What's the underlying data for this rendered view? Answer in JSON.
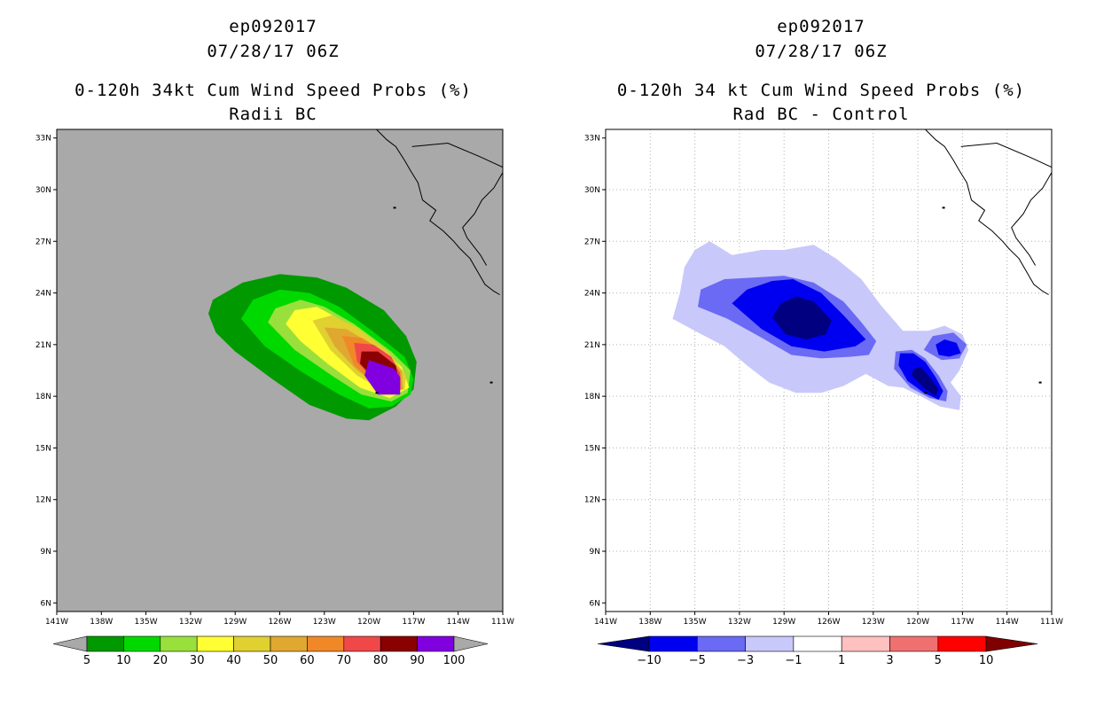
{
  "chart_data": [
    {
      "type": "heatmap",
      "title_lines": [
        "ep092017",
        "07/28/17 06Z",
        "0-120h 34kt Cum Wind Speed Probs (%)",
        "Radii BC"
      ],
      "xlabel": "",
      "ylabel": "",
      "xlim": [
        -141,
        -111
      ],
      "ylim": [
        5.5,
        33.5
      ],
      "x_ticks": [
        "141W",
        "138W",
        "135W",
        "132W",
        "129W",
        "126W",
        "123W",
        "120W",
        "117W",
        "114W",
        "111W"
      ],
      "y_ticks": [
        "6N",
        "9N",
        "12N",
        "15N",
        "18N",
        "21N",
        "24N",
        "27N",
        "30N",
        "33N"
      ],
      "grid": false,
      "background_color": "#a9a9a9",
      "colorbar": {
        "labels": [
          "5",
          "10",
          "20",
          "30",
          "40",
          "50",
          "60",
          "70",
          "80",
          "90",
          "100"
        ],
        "colors": [
          "#009900",
          "#00d900",
          "#99e03c",
          "#ffff33",
          "#e0d030",
          "#e0a830",
          "#f08828",
          "#f04848",
          "#8b0000",
          "#8000e0"
        ]
      },
      "contours": [
        {
          "level": 5,
          "color": "#009900",
          "poly": [
            [
              -130.8,
              22.8
            ],
            [
              -130.5,
              23.6
            ],
            [
              -128.5,
              24.6
            ],
            [
              -126,
              25.1
            ],
            [
              -123.5,
              24.9
            ],
            [
              -121.5,
              24.3
            ],
            [
              -119,
              23
            ],
            [
              -117.5,
              21.5
            ],
            [
              -116.8,
              20
            ],
            [
              -117,
              18.4
            ],
            [
              -118.2,
              17.4
            ],
            [
              -120,
              16.6
            ],
            [
              -121.5,
              16.7
            ],
            [
              -124,
              17.5
            ],
            [
              -126.5,
              19
            ],
            [
              -129,
              20.6
            ],
            [
              -130.3,
              21.7
            ]
          ]
        },
        {
          "level": 10,
          "color": "#00d900",
          "poly": [
            [
              -128.6,
              22.5
            ],
            [
              -127.8,
              23.6
            ],
            [
              -126,
              24.2
            ],
            [
              -124,
              24
            ],
            [
              -122,
              23.2
            ],
            [
              -119.8,
              21.8
            ],
            [
              -117.6,
              20.3
            ],
            [
              -117,
              19
            ],
            [
              -117.2,
              18.1
            ],
            [
              -118.5,
              17.4
            ],
            [
              -120,
              17.3
            ],
            [
              -122,
              18.1
            ],
            [
              -124.5,
              19.4
            ],
            [
              -127,
              20.9
            ]
          ]
        },
        {
          "level": 20,
          "color": "#99e03c",
          "poly": [
            [
              -126.8,
              22.3
            ],
            [
              -126.3,
              23.1
            ],
            [
              -124.6,
              23.6
            ],
            [
              -123,
              23.2
            ],
            [
              -121,
              22.2
            ],
            [
              -118.5,
              20.6
            ],
            [
              -117.2,
              19.5
            ],
            [
              -117.4,
              18.2
            ],
            [
              -118.5,
              17.7
            ],
            [
              -120.5,
              18.1
            ],
            [
              -122.5,
              19.2
            ],
            [
              -125,
              20.7
            ]
          ]
        },
        {
          "level": 30,
          "color": "#ffff33",
          "poly": [
            [
              -125.6,
              22.2
            ],
            [
              -125,
              23
            ],
            [
              -123.5,
              23.2
            ],
            [
              -121.8,
              22.4
            ],
            [
              -119.5,
              21.1
            ],
            [
              -117.8,
              19.7
            ],
            [
              -117.3,
              18.5
            ],
            [
              -118.6,
              17.9
            ],
            [
              -120.6,
              18.5
            ],
            [
              -122.8,
              19.9
            ],
            [
              -124.6,
              21.2
            ]
          ]
        },
        {
          "level": 40,
          "color": "#e0d030",
          "poly": [
            [
              -123.8,
              22.4
            ],
            [
              -122.5,
              22.7
            ],
            [
              -120.8,
              22
            ],
            [
              -118.7,
              20.6
            ],
            [
              -117.5,
              19.2
            ],
            [
              -117.6,
              18.4
            ],
            [
              -118.8,
              18.2
            ],
            [
              -120.8,
              19.2
            ],
            [
              -122.6,
              20.7
            ]
          ]
        },
        {
          "level": 50,
          "color": "#e0a830",
          "poly": [
            [
              -123,
              22
            ],
            [
              -121.5,
              21.9
            ],
            [
              -119.6,
              20.9
            ],
            [
              -117.8,
              19.5
            ],
            [
              -117.7,
              18.4
            ],
            [
              -119,
              18.3
            ],
            [
              -120.9,
              19.6
            ],
            [
              -122.3,
              20.9
            ]
          ]
        },
        {
          "level": 60,
          "color": "#f08828",
          "poly": [
            [
              -121.8,
              21.5
            ],
            [
              -120.5,
              21.4
            ],
            [
              -119,
              20.6
            ],
            [
              -117.9,
              19.4
            ],
            [
              -117.8,
              18.4
            ],
            [
              -119.2,
              18.4
            ],
            [
              -121,
              19.8
            ]
          ]
        },
        {
          "level": 70,
          "color": "#f04848",
          "poly": [
            [
              -121,
              21.1
            ],
            [
              -119.7,
              21
            ],
            [
              -118.5,
              20.3
            ],
            [
              -117.9,
              19.3
            ],
            [
              -117.9,
              18.4
            ],
            [
              -119.3,
              18.6
            ],
            [
              -120.8,
              20
            ]
          ]
        },
        {
          "level": 80,
          "color": "#8b0000",
          "poly": [
            [
              -120.5,
              20.6
            ],
            [
              -119.4,
              20.6
            ],
            [
              -118.2,
              19.8
            ],
            [
              -118,
              18.9
            ],
            [
              -118.3,
              18.5
            ],
            [
              -119.4,
              18.8
            ],
            [
              -120.6,
              19.9
            ]
          ]
        },
        {
          "level": 90,
          "color": "#8000e0",
          "poly": [
            [
              -120,
              20.1
            ],
            [
              -118.3,
              19.6
            ],
            [
              -117.9,
              19.1
            ],
            [
              -117.9,
              18.1
            ],
            [
              -119.4,
              18.1
            ],
            [
              -120.3,
              19.2
            ]
          ]
        }
      ]
    },
    {
      "type": "heatmap",
      "title_lines": [
        "ep092017",
        "07/28/17 06Z",
        "0-120h 34 kt Cum Wind Speed Probs (%)",
        "Rad BC - Control"
      ],
      "xlabel": "",
      "ylabel": "",
      "xlim": [
        -141,
        -111
      ],
      "ylim": [
        5.5,
        33.5
      ],
      "x_ticks": [
        "141W",
        "138W",
        "135W",
        "132W",
        "129W",
        "126W",
        "123W",
        "120W",
        "117W",
        "114W",
        "111W"
      ],
      "y_ticks": [
        "6N",
        "9N",
        "12N",
        "15N",
        "18N",
        "21N",
        "24N",
        "27N",
        "30N",
        "33N"
      ],
      "grid": true,
      "background_color": "#ffffff",
      "colorbar": {
        "labels": [
          "-10",
          "-5",
          "-3",
          "-1",
          "1",
          "3",
          "5",
          "10"
        ],
        "colors": [
          "#000080",
          "#0000f0",
          "#6a6af5",
          "#c8c8fa",
          "#ffffff",
          "#ffc0c0",
          "#f07070",
          "#ff0000",
          "#800000"
        ]
      },
      "contours": [
        {
          "level": -1,
          "color": "#c8c8fa",
          "poly": [
            [
              -136.5,
              22.5
            ],
            [
              -136,
              24
            ],
            [
              -135.7,
              25.5
            ],
            [
              -135,
              26.5
            ],
            [
              -134,
              27
            ],
            [
              -132.5,
              26.2
            ],
            [
              -130.5,
              26.5
            ],
            [
              -129,
              26.5
            ],
            [
              -127,
              26.8
            ],
            [
              -125.5,
              26
            ],
            [
              -123.8,
              24.8
            ],
            [
              -122.5,
              23.3
            ],
            [
              -121,
              21.8
            ],
            [
              -119.3,
              21.8
            ],
            [
              -118.2,
              22.1
            ],
            [
              -117,
              21.6
            ],
            [
              -116.6,
              20.7
            ],
            [
              -117.2,
              19.5
            ],
            [
              -117.8,
              18.8
            ],
            [
              -117.1,
              18
            ],
            [
              -117.2,
              17.2
            ],
            [
              -118.5,
              17.4
            ],
            [
              -119.8,
              18
            ],
            [
              -121,
              18.5
            ],
            [
              -122,
              18.6
            ],
            [
              -123.5,
              19.3
            ],
            [
              -125,
              18.6
            ],
            [
              -126.5,
              18.2
            ],
            [
              -128.2,
              18.2
            ],
            [
              -130,
              18.8
            ],
            [
              -131.5,
              19.8
            ],
            [
              -133,
              20.9
            ],
            [
              -135,
              21.8
            ]
          ]
        },
        {
          "level": -3,
          "color": "#6a6af5",
          "poly": [
            [
              -134.8,
              23.2
            ],
            [
              -134.6,
              24.2
            ],
            [
              -133,
              24.8
            ],
            [
              -131,
              24.9
            ],
            [
              -129,
              25
            ],
            [
              -127,
              24.6
            ],
            [
              -125,
              23.5
            ],
            [
              -123.8,
              22.3
            ],
            [
              -122.8,
              21.2
            ],
            [
              -123.3,
              20.4
            ],
            [
              -124.5,
              20.3
            ],
            [
              -126.5,
              20.2
            ],
            [
              -128.5,
              20.4
            ],
            [
              -130.5,
              21.4
            ],
            [
              -132.8,
              22.5
            ]
          ]
        },
        {
          "level": -3,
          "color": "#6a6af5",
          "poly": [
            [
              -121.5,
              20.6
            ],
            [
              -120.4,
              20.7
            ],
            [
              -119.5,
              20.2
            ],
            [
              -118.6,
              19.2
            ],
            [
              -118,
              18.3
            ],
            [
              -118.1,
              17.7
            ],
            [
              -119.2,
              17.9
            ],
            [
              -120.5,
              18.5
            ],
            [
              -121.6,
              19.6
            ]
          ]
        },
        {
          "level": -3,
          "color": "#6a6af5",
          "poly": [
            [
              -119.6,
              20.7
            ],
            [
              -119,
              21.5
            ],
            [
              -117.6,
              21.7
            ],
            [
              -116.7,
              21
            ],
            [
              -117.2,
              20.2
            ],
            [
              -118.4,
              20.1
            ]
          ]
        },
        {
          "level": -5,
          "color": "#0000f0",
          "poly": [
            [
              -132.5,
              23.4
            ],
            [
              -131.5,
              24.2
            ],
            [
              -129.8,
              24.7
            ],
            [
              -128.4,
              24.8
            ],
            [
              -126.5,
              24
            ],
            [
              -125,
              22.7
            ],
            [
              -123.5,
              21.3
            ],
            [
              -124.2,
              20.9
            ],
            [
              -126.3,
              20.6
            ],
            [
              -128.5,
              20.9
            ],
            [
              -130.5,
              21.9
            ]
          ]
        },
        {
          "level": -5,
          "color": "#0000f0",
          "poly": [
            [
              -121.2,
              20.5
            ],
            [
              -120.3,
              20.5
            ],
            [
              -119.5,
              20
            ],
            [
              -118.8,
              19.1
            ],
            [
              -118.3,
              18.3
            ],
            [
              -118.6,
              17.8
            ],
            [
              -119.6,
              18.2
            ],
            [
              -120.7,
              18.9
            ],
            [
              -121.3,
              19.8
            ]
          ]
        },
        {
          "level": -5,
          "color": "#0000f0",
          "poly": [
            [
              -118.8,
              21
            ],
            [
              -118.2,
              21.3
            ],
            [
              -117.4,
              21.1
            ],
            [
              -117.1,
              20.5
            ],
            [
              -117.9,
              20.3
            ],
            [
              -118.6,
              20.4
            ]
          ]
        },
        {
          "level": -10,
          "color": "#000080",
          "poly": [
            [
              -129.8,
              22.6
            ],
            [
              -129.2,
              23.4
            ],
            [
              -128.2,
              23.8
            ],
            [
              -127,
              23.5
            ],
            [
              -125.8,
              22.4
            ],
            [
              -126.2,
              21.6
            ],
            [
              -127.5,
              21.3
            ],
            [
              -128.9,
              21.6
            ]
          ]
        },
        {
          "level": -10,
          "color": "#000080",
          "poly": [
            [
              -120.3,
              19.6
            ],
            [
              -119.8,
              19.7
            ],
            [
              -119.1,
              19
            ],
            [
              -118.6,
              18.4
            ],
            [
              -118.8,
              18
            ],
            [
              -119.6,
              18.5
            ],
            [
              -120.4,
              19.2
            ]
          ]
        }
      ]
    }
  ]
}
